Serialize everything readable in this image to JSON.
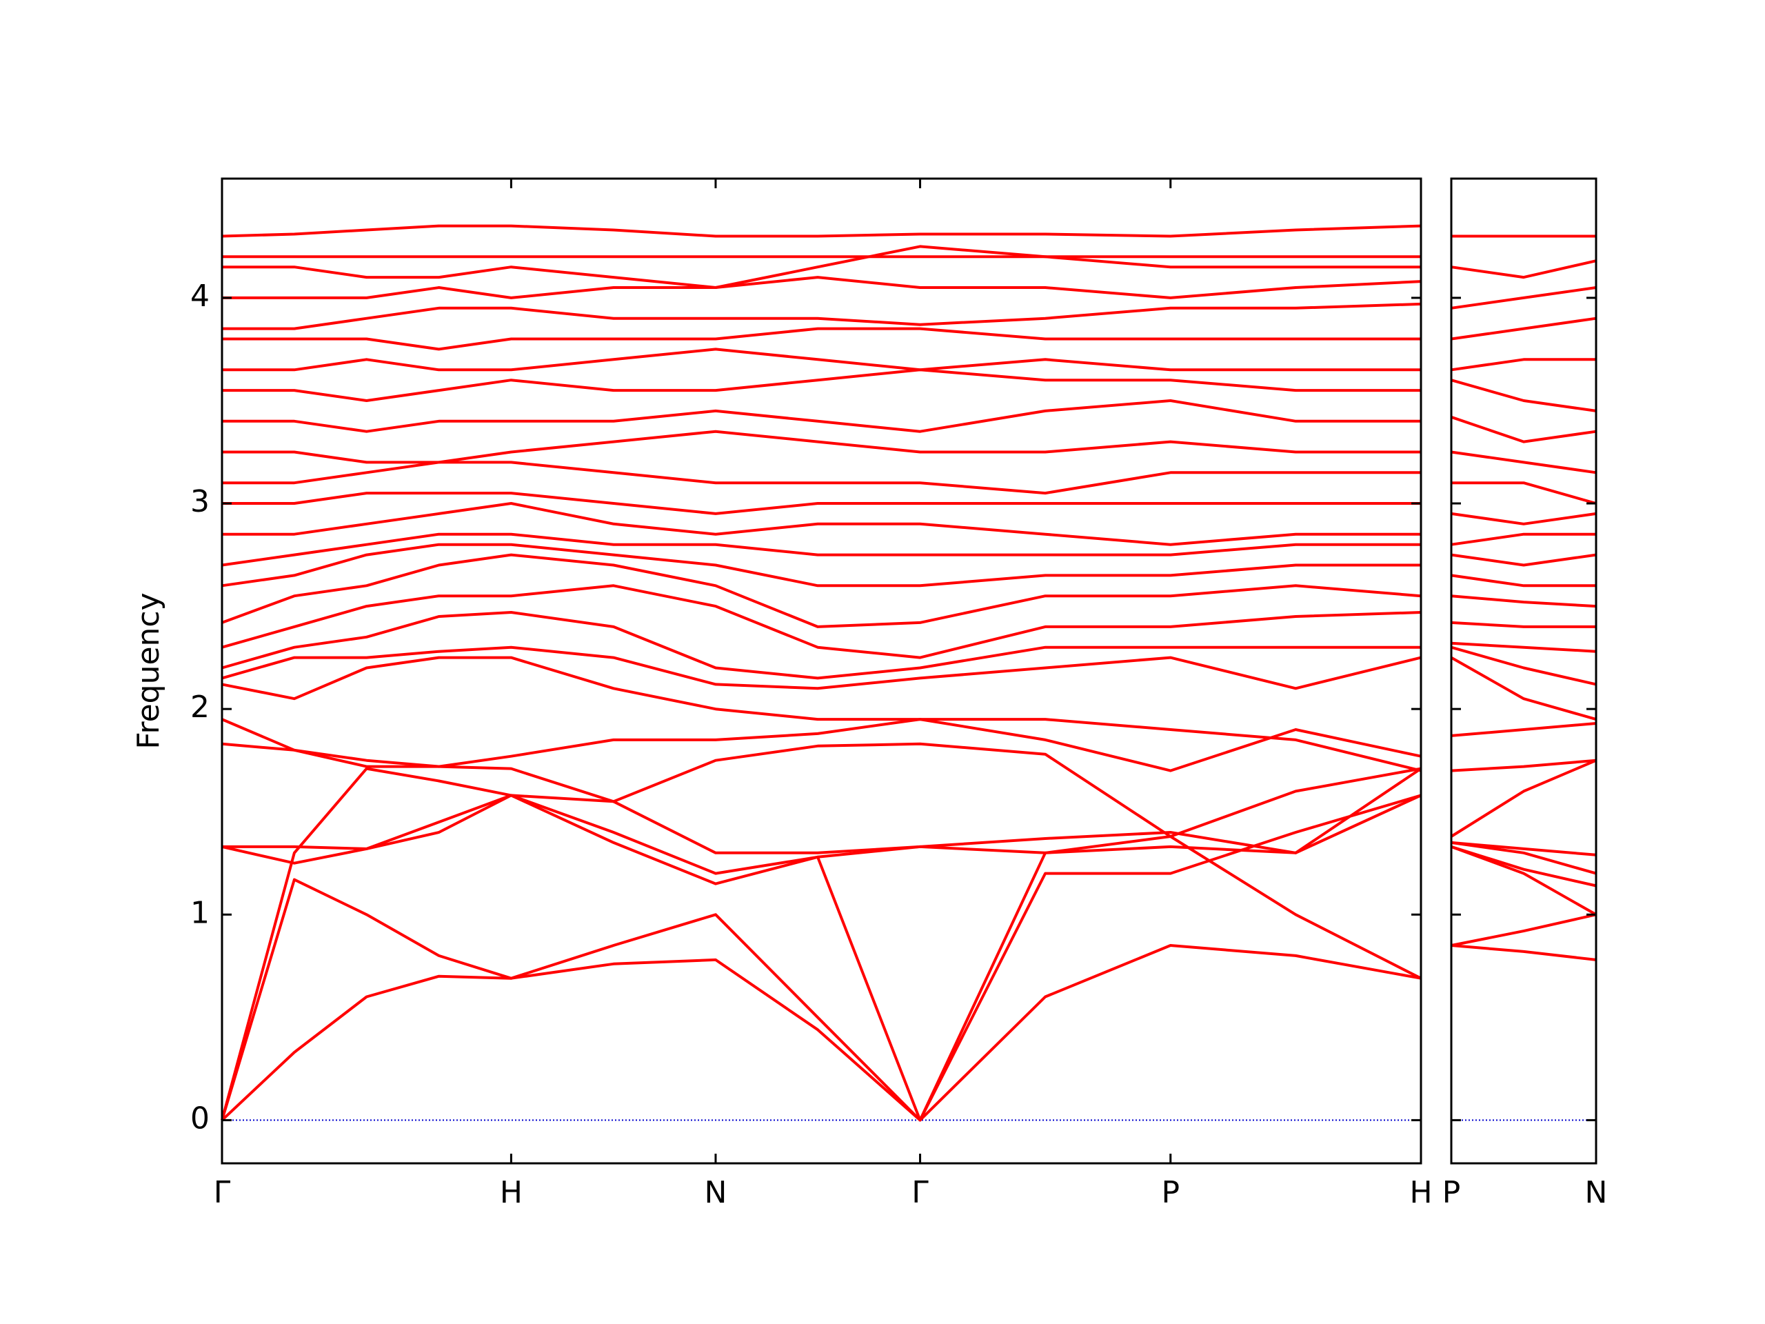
{
  "chart_data": [
    {
      "type": "line",
      "y_label": "Frequency",
      "color": "#ff0000",
      "show_ytick_labels": true,
      "zero_line": {
        "value": 0,
        "color": "#0000cc"
      },
      "x": [
        0,
        0.25,
        0.5,
        0.75,
        1,
        1.354,
        1.7071,
        2.06,
        2.4142,
        2.847,
        3.2802,
        3.713,
        4.1463
      ],
      "xlim": [
        0,
        4.1463
      ],
      "ylim": [
        -0.21,
        4.58
      ],
      "xticks": [
        {
          "value": 0,
          "label": "Γ"
        },
        {
          "value": 1,
          "label": "H"
        },
        {
          "value": 1.7071,
          "label": "N"
        },
        {
          "value": 2.4142,
          "label": "Γ"
        },
        {
          "value": 3.2802,
          "label": "P"
        },
        {
          "value": 4.1463,
          "label": "H"
        }
      ],
      "yticks": [
        0,
        1,
        2,
        3,
        4
      ],
      "series": [
        {
          "values": [
            0,
            0.33,
            0.6,
            0.7,
            0.69,
            0.76,
            0.78,
            0.44,
            0,
            0.6,
            0.85,
            0.8,
            0.69
          ]
        },
        {
          "values": [
            0,
            1.17,
            1.0,
            0.8,
            0.69,
            0.85,
            1.0,
            0.5,
            0,
            1.3,
            1.38,
            1.0,
            0.69
          ]
        },
        {
          "values": [
            0,
            1.3,
            1.71,
            1.65,
            1.58,
            1.35,
            1.15,
            1.28,
            0,
            1.2,
            1.2,
            1.4,
            1.58
          ]
        },
        {
          "values": [
            1.33,
            1.25,
            1.32,
            1.4,
            1.58,
            1.4,
            1.2,
            1.28,
            1.33,
            1.3,
            1.33,
            1.3,
            1.58
          ]
        },
        {
          "values": [
            1.33,
            1.33,
            1.32,
            1.45,
            1.58,
            1.55,
            1.3,
            1.3,
            1.33,
            1.37,
            1.4,
            1.3,
            1.71
          ]
        },
        {
          "values": [
            1.83,
            1.8,
            1.72,
            1.72,
            1.71,
            1.55,
            1.75,
            1.82,
            1.83,
            1.78,
            1.38,
            1.6,
            1.71
          ]
        },
        {
          "values": [
            1.95,
            1.8,
            1.75,
            1.72,
            1.77,
            1.85,
            1.85,
            1.88,
            1.95,
            1.85,
            1.7,
            1.9,
            1.77
          ]
        },
        {
          "values": [
            2.12,
            2.05,
            2.2,
            2.25,
            2.25,
            2.1,
            2.0,
            1.95,
            1.95,
            1.95,
            1.9,
            1.85,
            1.7
          ]
        },
        {
          "values": [
            2.15,
            2.25,
            2.25,
            2.28,
            2.3,
            2.25,
            2.12,
            2.1,
            2.15,
            2.2,
            2.25,
            2.1,
            2.25
          ]
        },
        {
          "values": [
            2.2,
            2.3,
            2.35,
            2.45,
            2.47,
            2.4,
            2.2,
            2.15,
            2.2,
            2.3,
            2.3,
            2.3,
            2.3
          ]
        },
        {
          "values": [
            2.3,
            2.4,
            2.5,
            2.55,
            2.55,
            2.6,
            2.5,
            2.3,
            2.25,
            2.4,
            2.4,
            2.45,
            2.47
          ]
        },
        {
          "values": [
            2.42,
            2.55,
            2.6,
            2.7,
            2.75,
            2.7,
            2.6,
            2.4,
            2.42,
            2.55,
            2.55,
            2.6,
            2.55
          ]
        },
        {
          "values": [
            2.6,
            2.65,
            2.75,
            2.8,
            2.8,
            2.75,
            2.7,
            2.6,
            2.6,
            2.65,
            2.65,
            2.7,
            2.7
          ]
        },
        {
          "values": [
            2.7,
            2.75,
            2.8,
            2.85,
            2.85,
            2.8,
            2.8,
            2.75,
            2.75,
            2.75,
            2.75,
            2.8,
            2.8
          ]
        },
        {
          "values": [
            2.85,
            2.85,
            2.9,
            2.95,
            3.0,
            2.9,
            2.85,
            2.9,
            2.9,
            2.85,
            2.8,
            2.85,
            2.85
          ]
        },
        {
          "values": [
            3.0,
            3.0,
            3.05,
            3.05,
            3.05,
            3.0,
            2.95,
            3.0,
            3.0,
            3.0,
            3.0,
            3.0,
            3.0
          ]
        },
        {
          "values": [
            3.1,
            3.1,
            3.15,
            3.2,
            3.2,
            3.15,
            3.1,
            3.1,
            3.1,
            3.05,
            3.15,
            3.15,
            3.15
          ]
        },
        {
          "values": [
            3.25,
            3.25,
            3.2,
            3.2,
            3.25,
            3.3,
            3.35,
            3.3,
            3.25,
            3.25,
            3.3,
            3.25,
            3.25
          ]
        },
        {
          "values": [
            3.4,
            3.4,
            3.35,
            3.4,
            3.4,
            3.4,
            3.45,
            3.4,
            3.35,
            3.45,
            3.5,
            3.4,
            3.4
          ]
        },
        {
          "values": [
            3.55,
            3.55,
            3.5,
            3.55,
            3.6,
            3.55,
            3.55,
            3.6,
            3.65,
            3.6,
            3.6,
            3.55,
            3.55
          ]
        },
        {
          "values": [
            3.65,
            3.65,
            3.7,
            3.65,
            3.65,
            3.7,
            3.75,
            3.7,
            3.65,
            3.7,
            3.65,
            3.65,
            3.65
          ]
        },
        {
          "values": [
            3.8,
            3.8,
            3.8,
            3.75,
            3.8,
            3.8,
            3.8,
            3.85,
            3.85,
            3.8,
            3.8,
            3.8,
            3.8
          ]
        },
        {
          "values": [
            3.85,
            3.85,
            3.9,
            3.95,
            3.95,
            3.9,
            3.9,
            3.9,
            3.87,
            3.9,
            3.95,
            3.95,
            3.97
          ]
        },
        {
          "values": [
            4.0,
            4.0,
            4.0,
            4.05,
            4.0,
            4.05,
            4.05,
            4.1,
            4.05,
            4.05,
            4.0,
            4.05,
            4.08
          ]
        },
        {
          "values": [
            4.15,
            4.15,
            4.1,
            4.1,
            4.15,
            4.1,
            4.05,
            4.15,
            4.25,
            4.2,
            4.15,
            4.15,
            4.15
          ]
        },
        {
          "values": [
            4.2,
            4.2,
            4.2,
            4.2,
            4.2,
            4.2,
            4.2,
            4.2,
            4.2,
            4.2,
            4.2,
            4.2,
            4.2
          ]
        },
        {
          "values": [
            4.3,
            4.31,
            4.33,
            4.35,
            4.35,
            4.33,
            4.3,
            4.3,
            4.31,
            4.31,
            4.3,
            4.33,
            4.35
          ]
        }
      ]
    },
    {
      "type": "line",
      "color": "#ff0000",
      "show_ytick_labels": false,
      "zero_line": {
        "value": 0,
        "color": "#0000cc"
      },
      "x": [
        4.1463,
        4.3963,
        4.6463
      ],
      "xlim": [
        4.1463,
        4.6463
      ],
      "ylim": [
        -0.21,
        4.58
      ],
      "xticks": [
        {
          "value": 4.1463,
          "label": "P"
        },
        {
          "value": 4.6463,
          "label": "N"
        }
      ],
      "yticks": [
        0,
        1,
        2,
        3,
        4
      ],
      "series": [
        {
          "values": [
            0.85,
            0.82,
            0.78
          ]
        },
        {
          "values": [
            0.85,
            0.92,
            1.0
          ]
        },
        {
          "values": [
            1.33,
            1.2,
            1.0
          ]
        },
        {
          "values": [
            1.33,
            1.22,
            1.14
          ]
        },
        {
          "values": [
            1.35,
            1.3,
            1.2
          ]
        },
        {
          "values": [
            1.35,
            1.32,
            1.29
          ]
        },
        {
          "values": [
            1.38,
            1.6,
            1.75
          ]
        },
        {
          "values": [
            1.7,
            1.72,
            1.75
          ]
        },
        {
          "values": [
            1.87,
            1.9,
            1.93
          ]
        },
        {
          "values": [
            2.25,
            2.05,
            1.95
          ]
        },
        {
          "values": [
            2.3,
            2.2,
            2.12
          ]
        },
        {
          "values": [
            2.32,
            2.3,
            2.28
          ]
        },
        {
          "values": [
            2.42,
            2.4,
            2.4
          ]
        },
        {
          "values": [
            2.55,
            2.52,
            2.5
          ]
        },
        {
          "values": [
            2.65,
            2.6,
            2.6
          ]
        },
        {
          "values": [
            2.75,
            2.7,
            2.75
          ]
        },
        {
          "values": [
            2.8,
            2.85,
            2.85
          ]
        },
        {
          "values": [
            2.95,
            2.9,
            2.95
          ]
        },
        {
          "values": [
            3.1,
            3.1,
            3.0
          ]
        },
        {
          "values": [
            3.25,
            3.2,
            3.15
          ]
        },
        {
          "values": [
            3.42,
            3.3,
            3.35
          ]
        },
        {
          "values": [
            3.6,
            3.5,
            3.45
          ]
        },
        {
          "values": [
            3.65,
            3.7,
            3.7
          ]
        },
        {
          "values": [
            3.8,
            3.85,
            3.9
          ]
        },
        {
          "values": [
            3.95,
            4.0,
            4.05
          ]
        },
        {
          "values": [
            4.15,
            4.1,
            4.18
          ]
        },
        {
          "values": [
            4.3,
            4.3,
            4.3
          ]
        }
      ]
    }
  ]
}
